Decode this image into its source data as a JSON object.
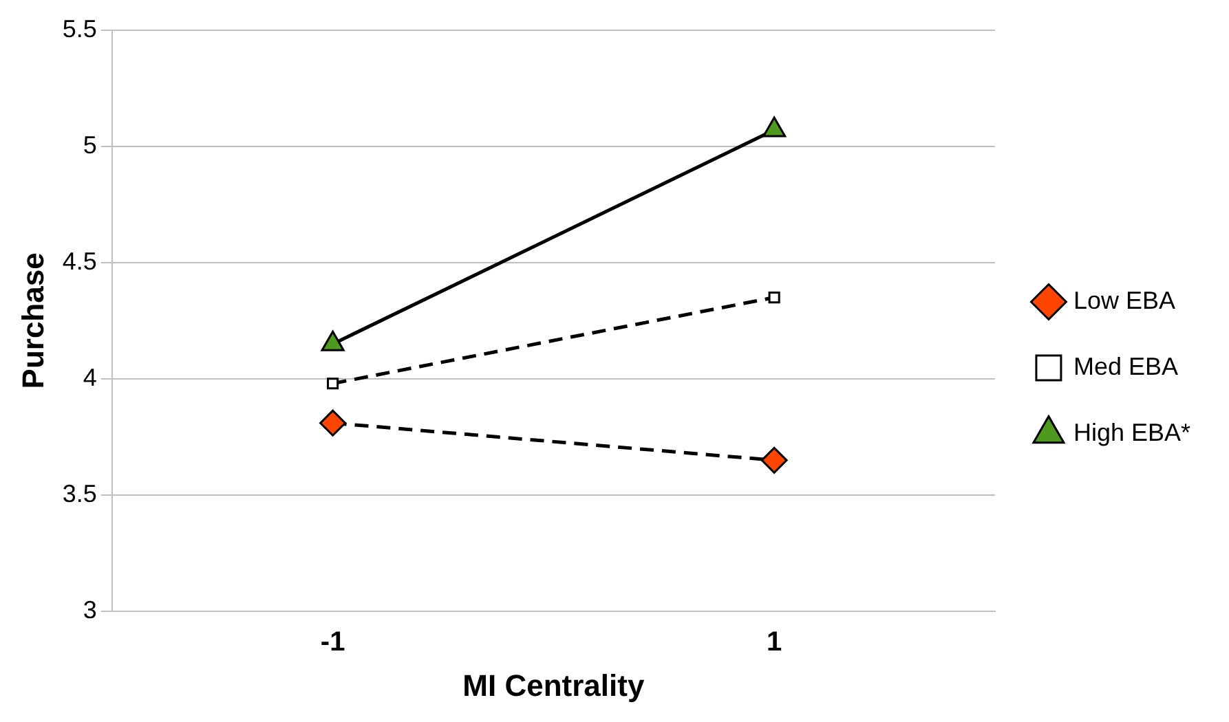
{
  "chart_data": {
    "type": "line",
    "xlabel": "MI Centrality",
    "ylabel": "Purchase",
    "categories": [
      "-1",
      "1"
    ],
    "series": [
      {
        "name": "Low EBA",
        "color": "#ff4500",
        "values": [
          3.81,
          3.65
        ],
        "marker": "diamond",
        "line_style": "dashed"
      },
      {
        "name": "Med EBA",
        "color": "#ffffff",
        "values": [
          3.98,
          4.35
        ],
        "marker": "square",
        "line_style": "dashed"
      },
      {
        "name": "High EBA*",
        "color": "#4e9a1e",
        "values": [
          4.15,
          5.07
        ],
        "marker": "triangle",
        "line_style": "solid"
      }
    ],
    "ylim": [
      3,
      5.5
    ],
    "yticks": [
      3,
      3.5,
      4,
      4.5,
      5,
      5.5
    ],
    "grid": "y",
    "legend": "right"
  }
}
